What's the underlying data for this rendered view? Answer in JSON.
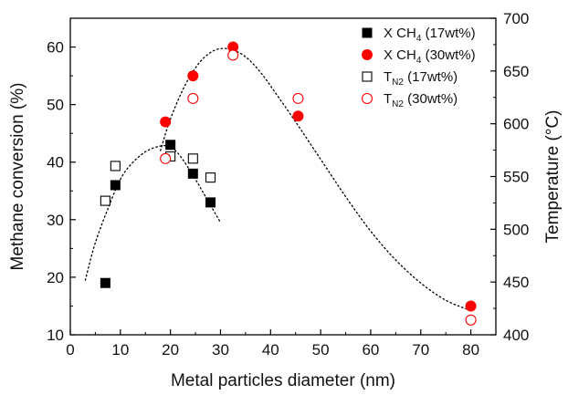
{
  "chart_data": {
    "type": "scatter",
    "xlabel": "Metal particles diameter (nm)",
    "ylabel_left": "Methane conversion (%)",
    "ylabel_right": "Temperature (°C)",
    "xlim": [
      0,
      85
    ],
    "ylim_left": [
      10,
      65
    ],
    "ylim_right": [
      400,
      700
    ],
    "x_ticks": [
      0,
      10,
      20,
      30,
      40,
      50,
      60,
      70,
      80
    ],
    "y_left_ticks": [
      10,
      20,
      30,
      40,
      50,
      60
    ],
    "y_right_ticks": [
      400,
      450,
      500,
      550,
      600,
      650,
      700
    ],
    "x_tick_labels": [
      "0",
      "10",
      "20",
      "30",
      "40",
      "50",
      "60",
      "70",
      "80"
    ],
    "y_left_tick_labels": [
      "10",
      "20",
      "30",
      "40",
      "50",
      "60"
    ],
    "y_right_tick_labels": [
      "400",
      "450",
      "500",
      "550",
      "600",
      "650",
      "700"
    ],
    "grid": false,
    "legend_position": "top-right",
    "series": [
      {
        "name": "X CH4 (17wt%)",
        "legend_main": "X CH",
        "legend_sub": "4",
        "legend_tail": " (17wt%)",
        "axis": "left",
        "marker": "square-filled",
        "color": "#000000",
        "x": [
          7,
          9,
          20,
          24.5,
          28
        ],
        "y": [
          19,
          36,
          43,
          38,
          33
        ]
      },
      {
        "name": "X CH4 (30wt%)",
        "legend_main": "X CH",
        "legend_sub": "4",
        "legend_tail": " (30wt%)",
        "axis": "left",
        "marker": "circle-filled",
        "color": "#ff0000",
        "x": [
          19,
          24.5,
          32.5,
          45.5,
          80
        ],
        "y": [
          47,
          55,
          60,
          48,
          15
        ]
      },
      {
        "name": "TN2 (17wt%)",
        "legend_main": "T",
        "legend_sub": "N2",
        "legend_tail": "  (17wt%)",
        "axis": "right",
        "marker": "square-open",
        "color": "#000000",
        "x": [
          7,
          9,
          20,
          24.5,
          28
        ],
        "y": [
          527,
          560,
          569,
          567,
          549
        ]
      },
      {
        "name": "TN2 (30wt%)",
        "legend_main": "T",
        "legend_sub": "N2",
        "legend_tail": "  (30wt%)",
        "axis": "right",
        "marker": "circle-open",
        "color": "#ff0000",
        "x": [
          19,
          24.5,
          32.5,
          45.5,
          80
        ],
        "y": [
          567,
          624,
          665,
          624,
          414
        ]
      }
    ],
    "trend_lines": [
      {
        "description": "dotted fit, 17wt% conversion",
        "axis": "left",
        "style": "dotted",
        "color": "#000000",
        "x": [
          3,
          5,
          8,
          10,
          12,
          15,
          18,
          20,
          22,
          25,
          27,
          30
        ],
        "y": [
          19.5,
          26,
          33,
          37,
          39.5,
          41.8,
          42.8,
          42.6,
          41,
          37,
          34,
          29.5
        ]
      },
      {
        "description": "dotted fit, 30wt% conversion",
        "axis": "left",
        "style": "dotted",
        "color": "#000000",
        "x": [
          18,
          20,
          23,
          26,
          29,
          32,
          35,
          38,
          41,
          45,
          50,
          55,
          60,
          65,
          70,
          75,
          80
        ],
        "y": [
          42,
          47.5,
          53.5,
          57.5,
          59.5,
          59.6,
          58.3,
          55.6,
          52,
          47,
          40.5,
          34,
          28,
          23,
          19,
          16,
          14.2
        ]
      }
    ]
  }
}
